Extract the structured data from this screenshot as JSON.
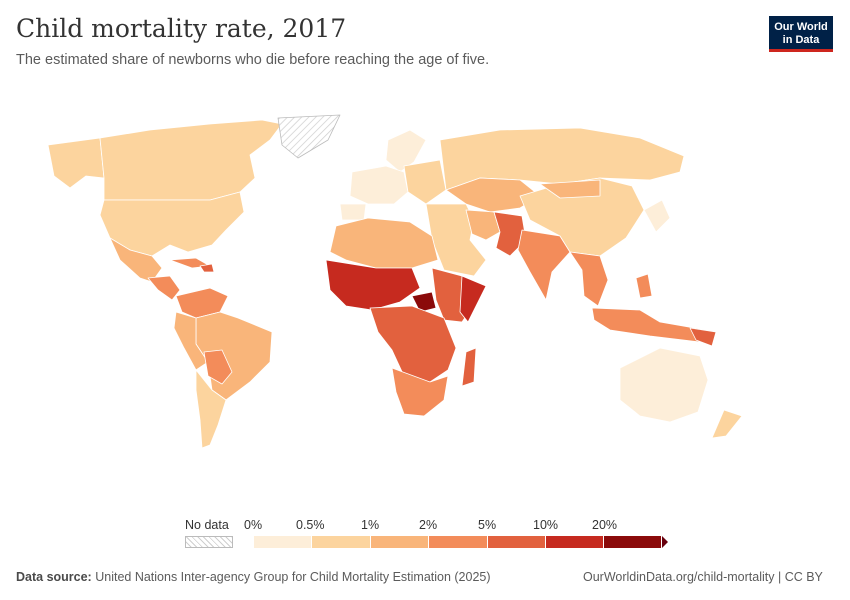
{
  "header": {
    "title": "Child mortality rate, 2017",
    "subtitle": "The estimated share of newborns who die before reaching the age of five."
  },
  "logo": {
    "line1": "Our World",
    "line2": "in Data",
    "bg_color": "#002147",
    "accent_color": "#ce261e"
  },
  "legend": {
    "no_data_label": "No data",
    "ticks": [
      "0%",
      "0.5%",
      "1%",
      "2%",
      "5%",
      "10%",
      "20%"
    ],
    "colors": [
      "#fdeed9",
      "#fcd49e",
      "#f9b57a",
      "#f38c5a",
      "#e2613e",
      "#c62a1f",
      "#8b0a0a"
    ]
  },
  "footer": {
    "source_prefix": "Data source:",
    "source_text": "United Nations Inter-agency Group for Child Mortality Estimation (2025)",
    "right_text": "OurWorldinData.org/child-mortality | CC BY"
  }
}
